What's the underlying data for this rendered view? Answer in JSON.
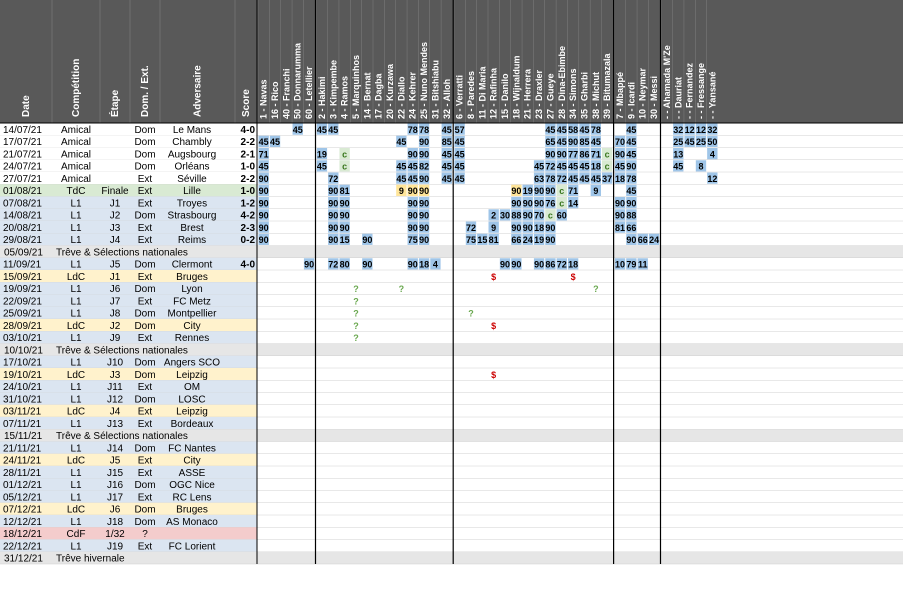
{
  "columns": {
    "date": "Date",
    "competition": "Compétition",
    "etape": "Étape",
    "domext": "Dom. / Ext.",
    "adversaire": "Adversaire",
    "score": "Score"
  },
  "players": [
    {
      "num": "1",
      "name": "Navas",
      "group": 0
    },
    {
      "num": "16",
      "name": "Rico",
      "group": 0
    },
    {
      "num": "40",
      "name": "Franchi",
      "group": 0
    },
    {
      "num": "50",
      "name": "Donnarumma",
      "group": 0
    },
    {
      "num": "60",
      "name": "Letellier",
      "group": 0
    },
    {
      "num": "2",
      "name": "Hakimi",
      "group": 1
    },
    {
      "num": "3",
      "name": "Kimpembe",
      "group": 1
    },
    {
      "num": "4",
      "name": "Ramos",
      "group": 1
    },
    {
      "num": "5",
      "name": "Marquinhos",
      "group": 1
    },
    {
      "num": "14",
      "name": "Bernat",
      "group": 1
    },
    {
      "num": "17",
      "name": "Dagba",
      "group": 1
    },
    {
      "num": "20",
      "name": "Kurzawa",
      "group": 1
    },
    {
      "num": "22",
      "name": "Diallo",
      "group": 1
    },
    {
      "num": "24",
      "name": "Kehrer",
      "group": 1
    },
    {
      "num": "25",
      "name": "Nuno Mendes",
      "group": 1
    },
    {
      "num": "31",
      "name": "Bitshiabu",
      "group": 1
    },
    {
      "num": "32",
      "name": "Alloh",
      "group": 1
    },
    {
      "num": "6",
      "name": "Verratti",
      "group": 2
    },
    {
      "num": "8",
      "name": "Paredes",
      "group": 2
    },
    {
      "num": "11",
      "name": "Di Maria",
      "group": 2
    },
    {
      "num": "12",
      "name": "Rafinha",
      "group": 2
    },
    {
      "num": "15",
      "name": "Danilo",
      "group": 2
    },
    {
      "num": "18",
      "name": "Wijnaldum",
      "group": 2
    },
    {
      "num": "21",
      "name": "Herrera",
      "group": 2
    },
    {
      "num": "23",
      "name": "Draxler",
      "group": 2
    },
    {
      "num": "27",
      "name": "Gueye",
      "group": 2
    },
    {
      "num": "28",
      "name": "Dina-Ebimbe",
      "group": 2
    },
    {
      "num": "34",
      "name": "Simons",
      "group": 2
    },
    {
      "num": "35",
      "name": "Gharbi",
      "group": 2
    },
    {
      "num": "38",
      "name": "Michut",
      "group": 2
    },
    {
      "num": "39",
      "name": "Bitumazala",
      "group": 2
    },
    {
      "num": "7",
      "name": "Mbappé",
      "group": 3
    },
    {
      "num": "9",
      "name": "Icardi",
      "group": 3
    },
    {
      "num": "10",
      "name": "Neymar",
      "group": 3
    },
    {
      "num": "30",
      "name": "Messi",
      "group": 3
    },
    {
      "num": "-",
      "name": "Ahamada M'Ze",
      "group": 4
    },
    {
      "num": "-",
      "name": "Dauriat",
      "group": 4
    },
    {
      "num": "-",
      "name": "Fernandez",
      "group": 4
    },
    {
      "num": "-",
      "name": "Fressange",
      "group": 4
    },
    {
      "num": "-",
      "name": "Yansané",
      "group": 4
    }
  ],
  "rows": [
    {
      "date": "14/07/21",
      "comp": "Amical",
      "etape": "",
      "dom": "Dom",
      "adv": "Le Mans",
      "score": "4-0",
      "sc": "w",
      "type": "amical",
      "cells": {
        "3": "45",
        "5": "45",
        "6": "45",
        "13": "78",
        "14": "78",
        "16": "45",
        "17": "57",
        "25": "45",
        "26": "45",
        "27": "58",
        "28": "45",
        "29": "78",
        "32": "45",
        "36": "32",
        "37": "12",
        "38": "12",
        "39": "32"
      }
    },
    {
      "date": "17/07/21",
      "comp": "Amical",
      "etape": "",
      "dom": "Dom",
      "adv": "Chambly",
      "score": "2-2",
      "sc": "d",
      "type": "amical",
      "cells": {
        "0": "45",
        "1": "45",
        "12": "45",
        "14": "90",
        "16": "85",
        "17": "45",
        "25": "65",
        "26": "45",
        "27": "90",
        "28": "85",
        "29": "45",
        "31": "70",
        "32": "45",
        "36": "25",
        "37": "45",
        "38": "25",
        "39": "50"
      }
    },
    {
      "date": "21/07/21",
      "comp": "Amical",
      "etape": "",
      "dom": "Dom",
      "adv": "Augsbourg",
      "score": "2-1",
      "sc": "w",
      "type": "amical",
      "cells": {
        "0": "71",
        "5": "19",
        "7": "c",
        "13": "90",
        "14": "90",
        "16": "45",
        "17": "45",
        "25": "90",
        "26": "90",
        "27": "77",
        "28": "86",
        "29": "71",
        "30": "c",
        "31": "90",
        "32": "45",
        "36": "13",
        "39": "4"
      }
    },
    {
      "date": "24/07/21",
      "comp": "Amical",
      "etape": "",
      "dom": "Dom",
      "adv": "Orléans",
      "score": "1-0",
      "sc": "w",
      "type": "amical",
      "cells": {
        "0": "45",
        "5": "45",
        "7": "c",
        "12": "45",
        "13": "45",
        "14": "82",
        "16": "45",
        "17": "45",
        "24": "45",
        "25": "72",
        "26": "45",
        "27": "45",
        "28": "45",
        "29": "18",
        "30": "c",
        "31": "45",
        "32": "90",
        "36": "45",
        "38": "8"
      }
    },
    {
      "date": "27/07/21",
      "comp": "Amical",
      "etape": "",
      "dom": "Ext",
      "adv": "Séville",
      "score": "2-2",
      "sc": "d",
      "type": "amical",
      "cells": {
        "0": "90",
        "6": "72",
        "12": "45",
        "13": "45",
        "14": "90",
        "16": "45",
        "17": "45",
        "24": "63",
        "25": "78",
        "26": "72",
        "27": "45",
        "28": "45",
        "29": "45",
        "30": "37",
        "31": "18",
        "32": "78",
        "39": "12"
      }
    },
    {
      "date": "01/08/21",
      "comp": "TdC",
      "etape": "Finale",
      "dom": "Ext",
      "adv": "Lille",
      "score": "1-0",
      "sc": "l",
      "type": "tdc",
      "cells": {
        "0": "90",
        "6": "90",
        "7": "81",
        "12": "9",
        "13": "90",
        "14": "90",
        "22": "90",
        "23": "19",
        "24": "90",
        "25": "90",
        "26": "c",
        "27": "71",
        "29": "9",
        "32": "45"
      }
    },
    {
      "date": "07/08/21",
      "comp": "L1",
      "etape": "J1",
      "dom": "Ext",
      "adv": "Troyes",
      "score": "1-2",
      "sc": "w",
      "type": "l1",
      "cells": {
        "0": "90",
        "6": "90",
        "7": "90",
        "13": "90",
        "14": "90",
        "22": "90",
        "23": "90",
        "24": "90",
        "25": "76",
        "26": "c",
        "27": "14",
        "31": "90",
        "32": "90"
      }
    },
    {
      "date": "14/08/21",
      "comp": "L1",
      "etape": "J2",
      "dom": "Dom",
      "adv": "Strasbourg",
      "score": "4-2",
      "sc": "w",
      "type": "l1",
      "cells": {
        "0": "90",
        "6": "90",
        "7": "90",
        "13": "90",
        "14": "90",
        "20": "2",
        "21": "30",
        "22": "88",
        "23": "90",
        "24": "70",
        "25": "c",
        "26": "60",
        "31": "90",
        "32": "88"
      }
    },
    {
      "date": "20/08/21",
      "comp": "L1",
      "etape": "J3",
      "dom": "Ext",
      "adv": "Brest",
      "score": "2-3",
      "sc": "w",
      "type": "l1",
      "cells": {
        "0": "90",
        "6": "90",
        "7": "90",
        "13": "90",
        "14": "90",
        "18": "72",
        "20": "9",
        "22": "90",
        "23": "90",
        "24": "18",
        "25": "90",
        "31": "81",
        "32": "66"
      }
    },
    {
      "date": "29/08/21",
      "comp": "L1",
      "etape": "J4",
      "dom": "Ext",
      "adv": "Reims",
      "score": "0-2",
      "sc": "w",
      "type": "l1",
      "cells": {
        "0": "90",
        "6": "90",
        "7": "15",
        "9": "90",
        "13": "75",
        "14": "90",
        "18": "75",
        "19": "15",
        "20": "81",
        "22": "66",
        "23": "24",
        "24": "19",
        "25": "90",
        "32": "90",
        "33": "66",
        "34": "24"
      }
    },
    {
      "date": "05/09/21",
      "comp": "Trêve & Sélections nationales",
      "etape": "",
      "dom": "",
      "adv": "",
      "score": "",
      "sc": "",
      "type": "treve",
      "cells": {}
    },
    {
      "date": "11/09/21",
      "comp": "L1",
      "etape": "J5",
      "dom": "Dom",
      "adv": "Clermont",
      "score": "4-0",
      "sc": "w",
      "type": "l1",
      "cells": {
        "4": "90",
        "6": "72",
        "7": "80",
        "9": "90",
        "13": "90",
        "14": "18",
        "15": "4",
        "21": "90",
        "22": "90",
        "24": "90",
        "25": "86",
        "26": "72",
        "27": "18",
        "31": "10",
        "32": "79",
        "33": "11"
      }
    },
    {
      "date": "15/09/21",
      "comp": "LdC",
      "etape": "J1",
      "dom": "Ext",
      "adv": "Bruges",
      "score": "",
      "sc": "",
      "type": "ldc",
      "cells": {
        "20": "$",
        "27": "$"
      }
    },
    {
      "date": "19/09/21",
      "comp": "L1",
      "etape": "J6",
      "dom": "Dom",
      "adv": "Lyon",
      "score": "",
      "sc": "",
      "type": "l1",
      "cells": {
        "8": "?",
        "12": "?",
        "29": "?"
      }
    },
    {
      "date": "22/09/21",
      "comp": "L1",
      "etape": "J7",
      "dom": "Ext",
      "adv": "FC Metz",
      "score": "",
      "sc": "",
      "type": "l1",
      "cells": {
        "8": "?"
      }
    },
    {
      "date": "25/09/21",
      "comp": "L1",
      "etape": "J8",
      "dom": "Dom",
      "adv": "Montpellier",
      "score": "",
      "sc": "",
      "type": "l1",
      "cells": {
        "8": "?",
        "18": "?"
      }
    },
    {
      "date": "28/09/21",
      "comp": "LdC",
      "etape": "J2",
      "dom": "Dom",
      "adv": "City",
      "score": "",
      "sc": "",
      "type": "ldc",
      "cells": {
        "8": "?",
        "20": "$"
      }
    },
    {
      "date": "03/10/21",
      "comp": "L1",
      "etape": "J9",
      "dom": "Ext",
      "adv": "Rennes",
      "score": "",
      "sc": "",
      "type": "l1",
      "cells": {
        "8": "?"
      }
    },
    {
      "date": "10/10/21",
      "comp": "Trêve & Sélections nationales",
      "etape": "",
      "dom": "",
      "adv": "",
      "score": "",
      "sc": "",
      "type": "treve",
      "cells": {}
    },
    {
      "date": "17/10/21",
      "comp": "L1",
      "etape": "J10",
      "dom": "Dom",
      "adv": "Angers SCO",
      "score": "",
      "sc": "",
      "type": "l1",
      "grey": true,
      "cells": {}
    },
    {
      "date": "19/10/21",
      "comp": "LdC",
      "etape": "J3",
      "dom": "Dom",
      "adv": "Leipzig",
      "score": "",
      "sc": "",
      "type": "ldc",
      "cells": {
        "20": "$"
      }
    },
    {
      "date": "24/10/21",
      "comp": "L1",
      "etape": "J11",
      "dom": "Ext",
      "adv": "OM",
      "score": "",
      "sc": "",
      "type": "l1",
      "cells": {}
    },
    {
      "date": "31/10/21",
      "comp": "L1",
      "etape": "J12",
      "dom": "Dom",
      "adv": "LOSC",
      "score": "",
      "sc": "",
      "type": "l1",
      "cells": {}
    },
    {
      "date": "03/11/21",
      "comp": "LdC",
      "etape": "J4",
      "dom": "Ext",
      "adv": "Leipzig",
      "score": "",
      "sc": "",
      "type": "ldc",
      "cells": {}
    },
    {
      "date": "07/11/21",
      "comp": "L1",
      "etape": "J13",
      "dom": "Ext",
      "adv": "Bordeaux",
      "score": "",
      "sc": "",
      "type": "l1",
      "grey": true,
      "cells": {}
    },
    {
      "date": "15/11/21",
      "comp": "Trêve & Sélections nationales",
      "etape": "",
      "dom": "",
      "adv": "",
      "score": "",
      "sc": "",
      "type": "treve",
      "cells": {}
    },
    {
      "date": "21/11/21",
      "comp": "L1",
      "etape": "J14",
      "dom": "Dom",
      "adv": "FC Nantes",
      "score": "",
      "sc": "",
      "type": "l1",
      "grey": true,
      "cells": {}
    },
    {
      "date": "24/11/21",
      "comp": "LdC",
      "etape": "J5",
      "dom": "Ext",
      "adv": "City",
      "score": "",
      "sc": "",
      "type": "ldc",
      "cells": {}
    },
    {
      "date": "28/11/21",
      "comp": "L1",
      "etape": "J15",
      "dom": "Ext",
      "adv": "ASSE",
      "score": "",
      "sc": "",
      "type": "l1",
      "grey": true,
      "cells": {}
    },
    {
      "date": "01/12/21",
      "comp": "L1",
      "etape": "J16",
      "dom": "Dom",
      "adv": "OGC Nice",
      "score": "",
      "sc": "",
      "type": "l1",
      "grey": true,
      "cells": {}
    },
    {
      "date": "05/12/21",
      "comp": "L1",
      "etape": "J17",
      "dom": "Ext",
      "adv": "RC Lens",
      "score": "",
      "sc": "",
      "type": "l1",
      "grey": true,
      "cells": {}
    },
    {
      "date": "07/12/21",
      "comp": "LdC",
      "etape": "J6",
      "dom": "Dom",
      "adv": "Bruges",
      "score": "",
      "sc": "",
      "type": "ldc",
      "cells": {}
    },
    {
      "date": "12/12/21",
      "comp": "L1",
      "etape": "J18",
      "dom": "Dom",
      "adv": "AS Monaco",
      "score": "",
      "sc": "",
      "type": "l1",
      "grey": true,
      "cells": {}
    },
    {
      "date": "18/12/21",
      "comp": "CdF",
      "etape": "1/32",
      "dom": "?",
      "adv": "",
      "score": "",
      "sc": "",
      "type": "cdf",
      "grey": true,
      "cells": {}
    },
    {
      "date": "22/12/21",
      "comp": "L1",
      "etape": "J19",
      "dom": "Ext",
      "adv": "FC Lorient",
      "score": "",
      "sc": "",
      "type": "l1",
      "grey": true,
      "cells": {}
    },
    {
      "date": "31/12/21",
      "comp": "Trêve hivernale",
      "etape": "",
      "dom": "",
      "adv": "",
      "score": "",
      "sc": "",
      "type": "treve",
      "cells": {}
    }
  ],
  "colors": {
    "header_bg": "#595959",
    "header_line": "#000000",
    "amical_bg": "#ffffff",
    "tdc_bg": "#d9ead3",
    "l1_bg": "#dbe5f1",
    "ldc_bg": "#fff2cc",
    "cdf_bg": "#f4cccc",
    "treve_bg": "#e6e6e6",
    "cell_blue": "#9fc5e8",
    "cell_green": "#d9ead3",
    "cell_yellow": "#ffe599",
    "cell_pink": "#f4cccc",
    "cell_grey": "#eeeeee",
    "score_win": "#38761d",
    "score_draw": "#000000",
    "score_loss": "#cc0000"
  }
}
